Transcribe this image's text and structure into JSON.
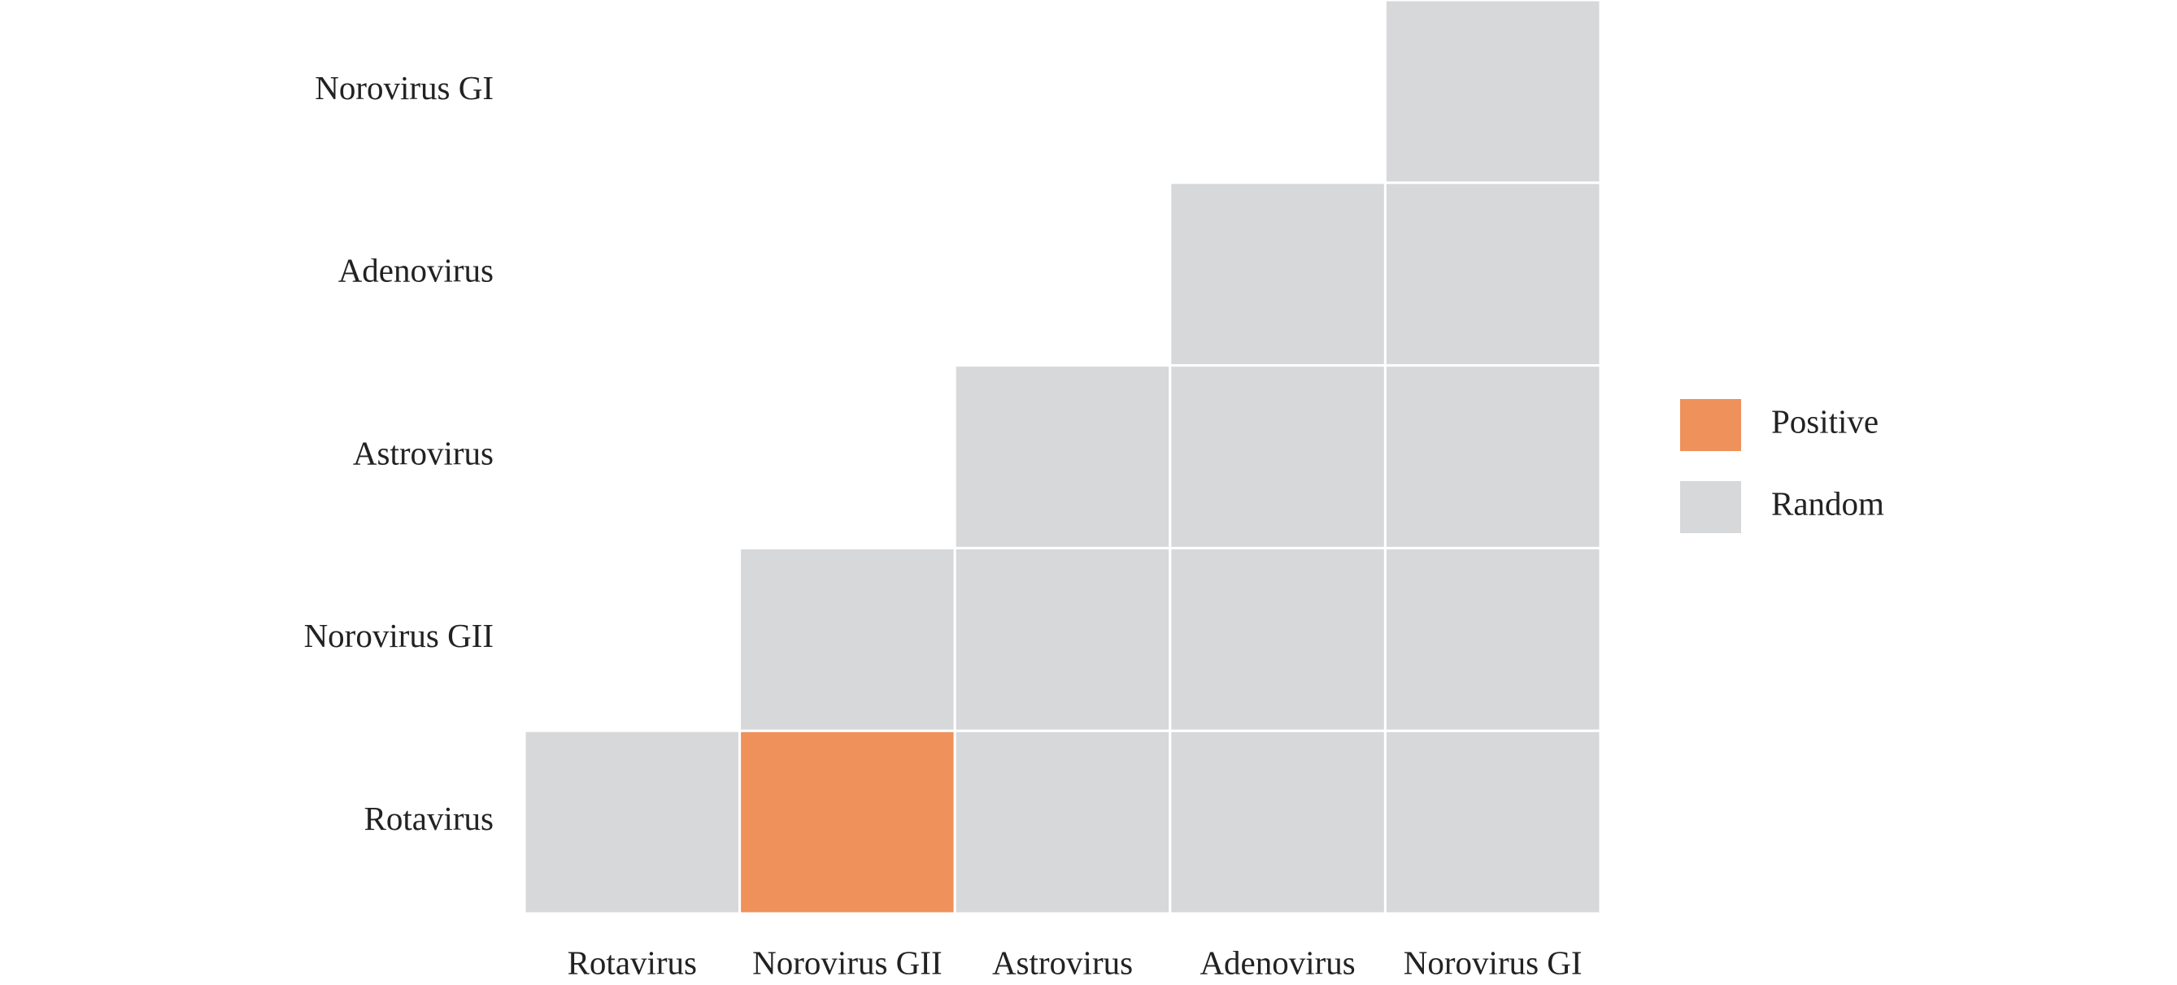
{
  "chart_data": {
    "type": "heatmap",
    "x_categories": [
      "Rotavirus",
      "Norovirus GII",
      "Astrovirus",
      "Adenovirus",
      "Norovirus GI"
    ],
    "y_categories": [
      "Rotavirus",
      "Norovirus GII",
      "Astrovirus",
      "Adenovirus",
      "Norovirus GI"
    ],
    "values": [
      [
        0,
        1,
        0,
        0,
        0
      ],
      [
        null,
        0,
        0,
        0,
        0
      ],
      [
        null,
        null,
        0,
        0,
        0
      ],
      [
        null,
        null,
        null,
        0,
        0
      ],
      [
        null,
        null,
        null,
        null,
        0
      ]
    ],
    "legend": [
      {
        "name": "Positive",
        "value": 1,
        "color": "#ef915a"
      },
      {
        "name": "Random",
        "value": 0,
        "color": "#d7d8da"
      }
    ]
  }
}
